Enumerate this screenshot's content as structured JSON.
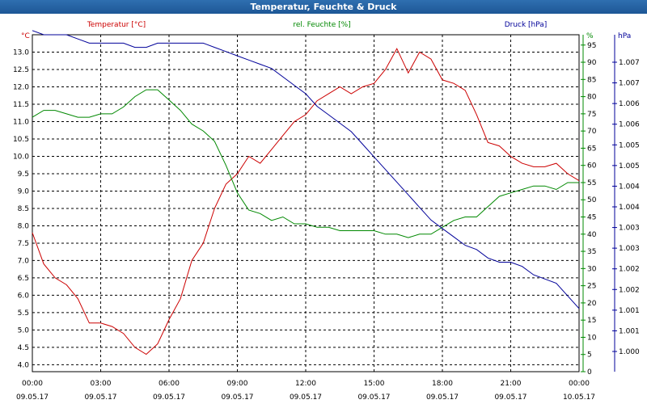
{
  "window": {
    "title": "Temperatur, Feuchte & Druck"
  },
  "chart_data": {
    "type": "line",
    "title": "Temperatur, Feuchte & Druck",
    "colors": {
      "temperature": "#cc0000",
      "humidity": "#008800",
      "pressure": "#000099"
    },
    "x_ticks": [
      {
        "time": "00:00",
        "date": "09.05.17"
      },
      {
        "time": "03:00",
        "date": "09.05.17"
      },
      {
        "time": "06:00",
        "date": "09.05.17"
      },
      {
        "time": "09:00",
        "date": "09.05.17"
      },
      {
        "time": "12:00",
        "date": "09.05.17"
      },
      {
        "time": "15:00",
        "date": "09.05.17"
      },
      {
        "time": "18:00",
        "date": "09.05.17"
      },
      {
        "time": "21:00",
        "date": "09.05.17"
      },
      {
        "time": "00:00",
        "date": "10.05.17"
      }
    ],
    "axes": {
      "temperature": {
        "label": "Temperatur [°C]",
        "unit": "°C",
        "range": [
          3.8,
          13.5
        ],
        "ticks": [
          "13.0",
          "12.5",
          "12.0",
          "11.5",
          "11.0",
          "10.5",
          "10.0",
          "9.5",
          "9.0",
          "8.5",
          "8.0",
          "7.5",
          "7.0",
          "6.5",
          "6.0",
          "5.5",
          "5.0",
          "4.5",
          "4.0"
        ]
      },
      "humidity": {
        "label": "rel. Feuchte [%]",
        "unit": "%",
        "range": [
          0,
          98
        ],
        "ticks": [
          "95",
          "90",
          "85",
          "80",
          "75",
          "70",
          "65",
          "60",
          "55",
          "50",
          "45",
          "40",
          "35",
          "30",
          "25",
          "20",
          "15",
          "10",
          "5",
          "0"
        ]
      },
      "pressure": {
        "label": "Druck [hPa]",
        "unit": "hPa",
        "range": [
          0.9995,
          1.0075
        ],
        "ticks": [
          "1.007",
          "1.007",
          "1.006",
          "1.006",
          "1.005",
          "1.005",
          "1.004",
          "1.004",
          "1.003",
          "1.003",
          "1.002",
          "1.002",
          "1.001",
          "1.001",
          "1.000"
        ]
      }
    },
    "series": [
      {
        "name": "Temperatur [°C]",
        "axis": "temperature",
        "x_hours": [
          0,
          0.5,
          1,
          1.5,
          2,
          2.5,
          3,
          3.5,
          4,
          4.5,
          5,
          5.5,
          6,
          6.5,
          7,
          7.5,
          8,
          8.5,
          9,
          9.5,
          10,
          10.5,
          11,
          11.5,
          12,
          12.5,
          13,
          13.5,
          14,
          14.5,
          15,
          15.5,
          16,
          16.5,
          17,
          17.5,
          18,
          18.5,
          19,
          19.5,
          20,
          20.5,
          21,
          21.5,
          22,
          22.5,
          23,
          23.5,
          24
        ],
        "values": [
          7.8,
          6.9,
          6.5,
          6.3,
          5.9,
          5.2,
          5.2,
          5.1,
          4.9,
          4.5,
          4.3,
          4.6,
          5.3,
          5.9,
          7.0,
          7.5,
          8.5,
          9.2,
          9.5,
          10.0,
          9.8,
          10.2,
          10.6,
          11.0,
          11.2,
          11.6,
          11.8,
          12.0,
          11.8,
          12.0,
          12.1,
          12.5,
          13.1,
          12.4,
          13.0,
          12.8,
          12.2,
          12.1,
          11.9,
          11.2,
          10.4,
          10.3,
          10.0,
          9.8,
          9.7,
          9.7,
          9.8,
          9.5,
          9.3
        ]
      },
      {
        "name": "rel. Feuchte [%]",
        "axis": "humidity",
        "x_hours": [
          0,
          0.5,
          1,
          1.5,
          2,
          2.5,
          3,
          3.5,
          4,
          4.5,
          5,
          5.5,
          6,
          6.5,
          7,
          7.5,
          8,
          8.5,
          9,
          9.5,
          10,
          10.5,
          11,
          11.5,
          12,
          12.5,
          13,
          13.5,
          14,
          14.5,
          15,
          15.5,
          16,
          16.5,
          17,
          17.5,
          18,
          18.5,
          19,
          19.5,
          20,
          20.5,
          21,
          21.5,
          22,
          22.5,
          23,
          23.5,
          24
        ],
        "values": [
          74,
          76,
          76,
          75,
          74,
          74,
          75,
          75,
          77,
          80,
          82,
          82,
          79,
          76,
          72,
          70,
          67,
          60,
          52,
          47,
          46,
          44,
          45,
          43,
          43,
          42,
          42,
          41,
          41,
          41,
          41,
          40,
          40,
          39,
          40,
          40,
          42,
          44,
          45,
          45,
          48,
          51,
          52,
          53,
          54,
          54,
          53,
          55,
          55
        ]
      },
      {
        "name": "Druck [hPa]",
        "axis": "pressure",
        "x_hours": [
          0,
          0.5,
          1,
          1.5,
          2,
          2.5,
          3,
          3.5,
          4,
          4.5,
          5,
          5.5,
          6,
          6.5,
          7,
          7.5,
          8,
          8.5,
          9,
          9.5,
          10,
          10.5,
          11,
          11.5,
          12,
          12.5,
          13,
          13.5,
          14,
          14.5,
          15,
          15.5,
          16,
          16.5,
          17,
          17.5,
          18,
          18.5,
          19,
          19.5,
          20,
          20.5,
          21,
          21.5,
          22,
          22.5,
          23,
          23.5,
          24
        ],
        "values": [
          1.0076,
          1.0075,
          1.0075,
          1.0075,
          1.0074,
          1.0073,
          1.0073,
          1.0073,
          1.0073,
          1.0072,
          1.0072,
          1.0073,
          1.0073,
          1.0073,
          1.0073,
          1.0073,
          1.0072,
          1.0071,
          1.007,
          1.0069,
          1.0068,
          1.0067,
          1.0065,
          1.0063,
          1.0061,
          1.0058,
          1.0056,
          1.0054,
          1.0052,
          1.0049,
          1.0046,
          1.0043,
          1.004,
          1.0037,
          1.0034,
          1.0031,
          1.0029,
          1.0027,
          1.0025,
          1.0024,
          1.0022,
          1.0021,
          1.0021,
          1.002,
          1.0018,
          1.0017,
          1.0016,
          1.0013,
          1.001
        ]
      }
    ]
  }
}
